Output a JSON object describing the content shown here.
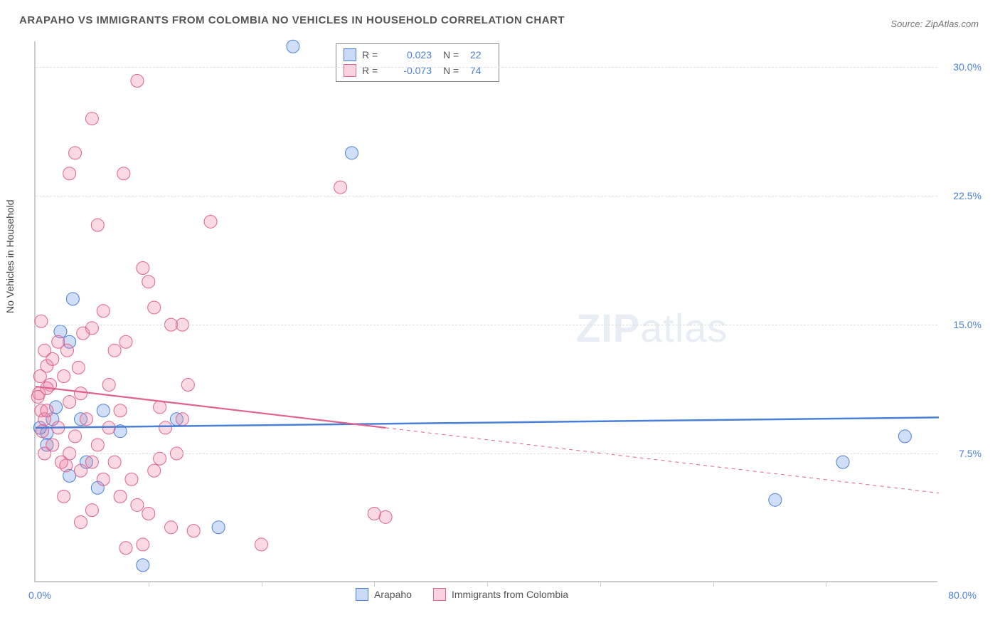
{
  "title": "ARAPAHO VS IMMIGRANTS FROM COLOMBIA NO VEHICLES IN HOUSEHOLD CORRELATION CHART",
  "source": "Source: ZipAtlas.com",
  "ylabel": "No Vehicles in Household",
  "watermark_bold": "ZIP",
  "watermark_thin": "atlas",
  "chart": {
    "type": "scatter",
    "xlim": [
      0,
      80
    ],
    "ylim": [
      0,
      31.5
    ],
    "x_axis_label_left": "0.0%",
    "x_axis_label_right": "80.0%",
    "y_ticks": [
      {
        "v": 7.5,
        "label": "7.5%"
      },
      {
        "v": 15.0,
        "label": "15.0%"
      },
      {
        "v": 22.5,
        "label": "22.5%"
      },
      {
        "v": 30.0,
        "label": "30.0%"
      }
    ],
    "x_tick_positions": [
      10,
      20,
      30,
      40,
      50,
      60,
      70
    ],
    "background_color": "#ffffff",
    "grid_color": "#dddddd",
    "marker_radius": 9,
    "series": [
      {
        "name": "Arapaho",
        "fill": "rgba(100,150,230,0.30)",
        "stroke": "#4a7fd8",
        "R": "0.023",
        "N": "22",
        "trend": {
          "y_at_x0": 9.0,
          "y_at_xmax": 9.6,
          "solid_until_x": 80,
          "stroke_width": 2.5
        },
        "points": [
          [
            22.8,
            31.2
          ],
          [
            28.0,
            25.0
          ],
          [
            3.3,
            16.5
          ],
          [
            1.0,
            8.7
          ],
          [
            1.5,
            9.5
          ],
          [
            3.0,
            6.2
          ],
          [
            5.5,
            5.5
          ],
          [
            1.0,
            8.0
          ],
          [
            0.4,
            9.0
          ],
          [
            12.5,
            9.5
          ],
          [
            9.5,
            1.0
          ],
          [
            16.2,
            3.2
          ],
          [
            77.0,
            8.5
          ],
          [
            71.5,
            7.0
          ],
          [
            65.5,
            4.8
          ],
          [
            4.0,
            9.5
          ],
          [
            2.2,
            14.6
          ],
          [
            6.0,
            10.0
          ],
          [
            7.5,
            8.8
          ],
          [
            4.5,
            7.0
          ],
          [
            3.0,
            14.0
          ],
          [
            1.8,
            10.2
          ]
        ]
      },
      {
        "name": "Immigrants from Colombia",
        "fill": "rgba(240,130,160,0.30)",
        "stroke": "#e06090",
        "R": "-0.073",
        "N": "74",
        "trend": {
          "y_at_x0": 11.4,
          "y_at_xmax": 5.2,
          "solid_until_x": 31,
          "stroke_width": 2.2
        },
        "points": [
          [
            9.0,
            29.2
          ],
          [
            5.0,
            27.0
          ],
          [
            3.5,
            25.0
          ],
          [
            3.0,
            23.8
          ],
          [
            7.8,
            23.8
          ],
          [
            5.5,
            20.8
          ],
          [
            15.5,
            21.0
          ],
          [
            27.0,
            23.0
          ],
          [
            0.5,
            15.2
          ],
          [
            0.8,
            13.5
          ],
          [
            1.0,
            12.6
          ],
          [
            2.0,
            14.0
          ],
          [
            2.5,
            12.0
          ],
          [
            3.0,
            10.5
          ],
          [
            4.0,
            11.0
          ],
          [
            5.0,
            14.8
          ],
          [
            6.0,
            15.8
          ],
          [
            7.0,
            13.5
          ],
          [
            8.0,
            14.0
          ],
          [
            9.5,
            18.3
          ],
          [
            10.0,
            17.5
          ],
          [
            10.5,
            16.0
          ],
          [
            11.0,
            10.2
          ],
          [
            12.0,
            15.0
          ],
          [
            13.0,
            15.0
          ],
          [
            13.5,
            11.5
          ],
          [
            0.3,
            11.0
          ],
          [
            0.5,
            10.0
          ],
          [
            0.8,
            9.5
          ],
          [
            1.0,
            10.0
          ],
          [
            1.3,
            11.5
          ],
          [
            1.5,
            8.0
          ],
          [
            2.0,
            9.0
          ],
          [
            2.3,
            7.0
          ],
          [
            2.7,
            6.8
          ],
          [
            3.0,
            7.5
          ],
          [
            3.5,
            8.5
          ],
          [
            4.0,
            6.5
          ],
          [
            4.5,
            9.5
          ],
          [
            5.0,
            7.0
          ],
          [
            5.5,
            8.0
          ],
          [
            6.0,
            6.0
          ],
          [
            6.5,
            9.0
          ],
          [
            7.0,
            7.0
          ],
          [
            7.5,
            10.0
          ],
          [
            8.5,
            6.0
          ],
          [
            9.0,
            4.5
          ],
          [
            10.0,
            4.0
          ],
          [
            10.5,
            6.5
          ],
          [
            11.5,
            9.0
          ],
          [
            12.0,
            3.2
          ],
          [
            12.5,
            7.5
          ],
          [
            13.0,
            9.5
          ],
          [
            8.0,
            2.0
          ],
          [
            9.5,
            2.2
          ],
          [
            20.0,
            2.2
          ],
          [
            14.0,
            3.0
          ],
          [
            31.0,
            3.8
          ],
          [
            30.0,
            4.0
          ],
          [
            0.2,
            10.8
          ],
          [
            0.4,
            12.0
          ],
          [
            0.6,
            8.8
          ],
          [
            1.5,
            13.0
          ],
          [
            2.8,
            13.5
          ],
          [
            3.8,
            12.5
          ],
          [
            4.2,
            14.5
          ],
          [
            1.0,
            11.3
          ],
          [
            0.8,
            7.5
          ],
          [
            2.5,
            5.0
          ],
          [
            6.5,
            11.5
          ],
          [
            7.5,
            5.0
          ],
          [
            4.0,
            3.5
          ],
          [
            5.0,
            4.2
          ],
          [
            11.0,
            7.2
          ]
        ]
      }
    ]
  },
  "legend": {
    "series1_label": "Arapaho",
    "series2_label": "Immigrants from Colombia"
  }
}
